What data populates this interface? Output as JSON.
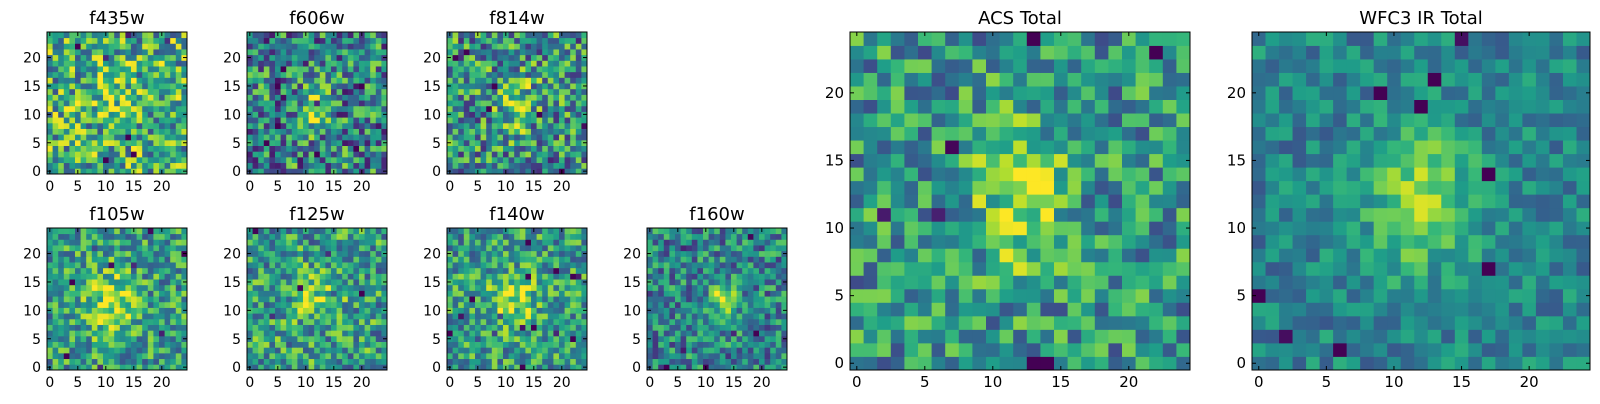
{
  "chart_data": {
    "type": "heatmap",
    "colormap": "viridis",
    "panels": [
      {
        "title": "f435w",
        "xlim": [
          0,
          24
        ],
        "ylim": [
          0,
          24
        ],
        "xticks": [
          0,
          5,
          10,
          15,
          20
        ],
        "yticks": [
          0,
          5,
          10,
          15,
          20
        ],
        "center": [
          12,
          13
        ],
        "blob_sigma": [
          3,
          3
        ],
        "blob_amp": 0.15,
        "base": 0.62,
        "noise": 0.38,
        "seed": 11
      },
      {
        "title": "f606w",
        "xlim": [
          0,
          24
        ],
        "ylim": [
          0,
          24
        ],
        "xticks": [
          0,
          5,
          10,
          15,
          20
        ],
        "yticks": [
          0,
          5,
          10,
          15,
          20
        ],
        "center": [
          11,
          11
        ],
        "blob_sigma": [
          2,
          3.5
        ],
        "blob_amp": 0.3,
        "base": 0.45,
        "noise": 0.4,
        "seed": 23
      },
      {
        "title": "f814w",
        "xlim": [
          0,
          24
        ],
        "ylim": [
          0,
          24
        ],
        "xticks": [
          0,
          5,
          10,
          15,
          20
        ],
        "yticks": [
          0,
          5,
          10,
          15,
          20
        ],
        "center": [
          12,
          12
        ],
        "blob_sigma": [
          2.5,
          3.5
        ],
        "blob_amp": 0.3,
        "base": 0.5,
        "noise": 0.38,
        "seed": 37
      },
      {
        "title": "f105w",
        "xlim": [
          0,
          24
        ],
        "ylim": [
          0,
          24
        ],
        "xticks": [
          0,
          5,
          10,
          15,
          20
        ],
        "yticks": [
          0,
          5,
          10,
          15,
          20
        ],
        "center": [
          11,
          11
        ],
        "blob_sigma": [
          3,
          4
        ],
        "blob_amp": 0.35,
        "base": 0.55,
        "noise": 0.3,
        "seed": 41
      },
      {
        "title": "f125w",
        "xlim": [
          0,
          24
        ],
        "ylim": [
          0,
          24
        ],
        "xticks": [
          0,
          5,
          10,
          15,
          20
        ],
        "yticks": [
          0,
          5,
          10,
          15,
          20
        ],
        "center": [
          12,
          12
        ],
        "blob_sigma": [
          3,
          3
        ],
        "blob_amp": 0.25,
        "base": 0.55,
        "noise": 0.32,
        "seed": 53
      },
      {
        "title": "f140w",
        "xlim": [
          0,
          24
        ],
        "ylim": [
          0,
          24
        ],
        "xticks": [
          0,
          5,
          10,
          15,
          20
        ],
        "yticks": [
          0,
          5,
          10,
          15,
          20
        ],
        "center": [
          11,
          12
        ],
        "blob_sigma": [
          3,
          3
        ],
        "blob_amp": 0.35,
        "base": 0.55,
        "noise": 0.3,
        "seed": 67
      },
      {
        "title": "f160w",
        "xlim": [
          0,
          24
        ],
        "ylim": [
          0,
          24
        ],
        "xticks": [
          0,
          5,
          10,
          15,
          20
        ],
        "yticks": [
          0,
          5,
          10,
          15,
          20
        ],
        "center": [
          13,
          12
        ],
        "blob_sigma": [
          1.6,
          2.4
        ],
        "blob_amp": 0.45,
        "base": 0.45,
        "noise": 0.3,
        "seed": 79
      },
      {
        "title": "ACS Total",
        "xlim": [
          0,
          24
        ],
        "ylim": [
          0,
          24
        ],
        "xticks": [
          0,
          5,
          10,
          15,
          20
        ],
        "yticks": [
          0,
          5,
          10,
          15,
          20
        ],
        "center": [
          12,
          12
        ],
        "blob_sigma": [
          2.2,
          3.5
        ],
        "blob_amp": 0.4,
        "base": 0.52,
        "noise": 0.3,
        "seed": 97
      },
      {
        "title": "WFC3 IR Total",
        "xlim": [
          0,
          24
        ],
        "ylim": [
          0,
          24
        ],
        "xticks": [
          0,
          5,
          10,
          15,
          20
        ],
        "yticks": [
          0,
          5,
          10,
          15,
          20
        ],
        "center": [
          12,
          12
        ],
        "blob_sigma": [
          2.6,
          3.4
        ],
        "blob_amp": 0.45,
        "base": 0.45,
        "noise": 0.18,
        "seed": 113
      }
    ]
  }
}
